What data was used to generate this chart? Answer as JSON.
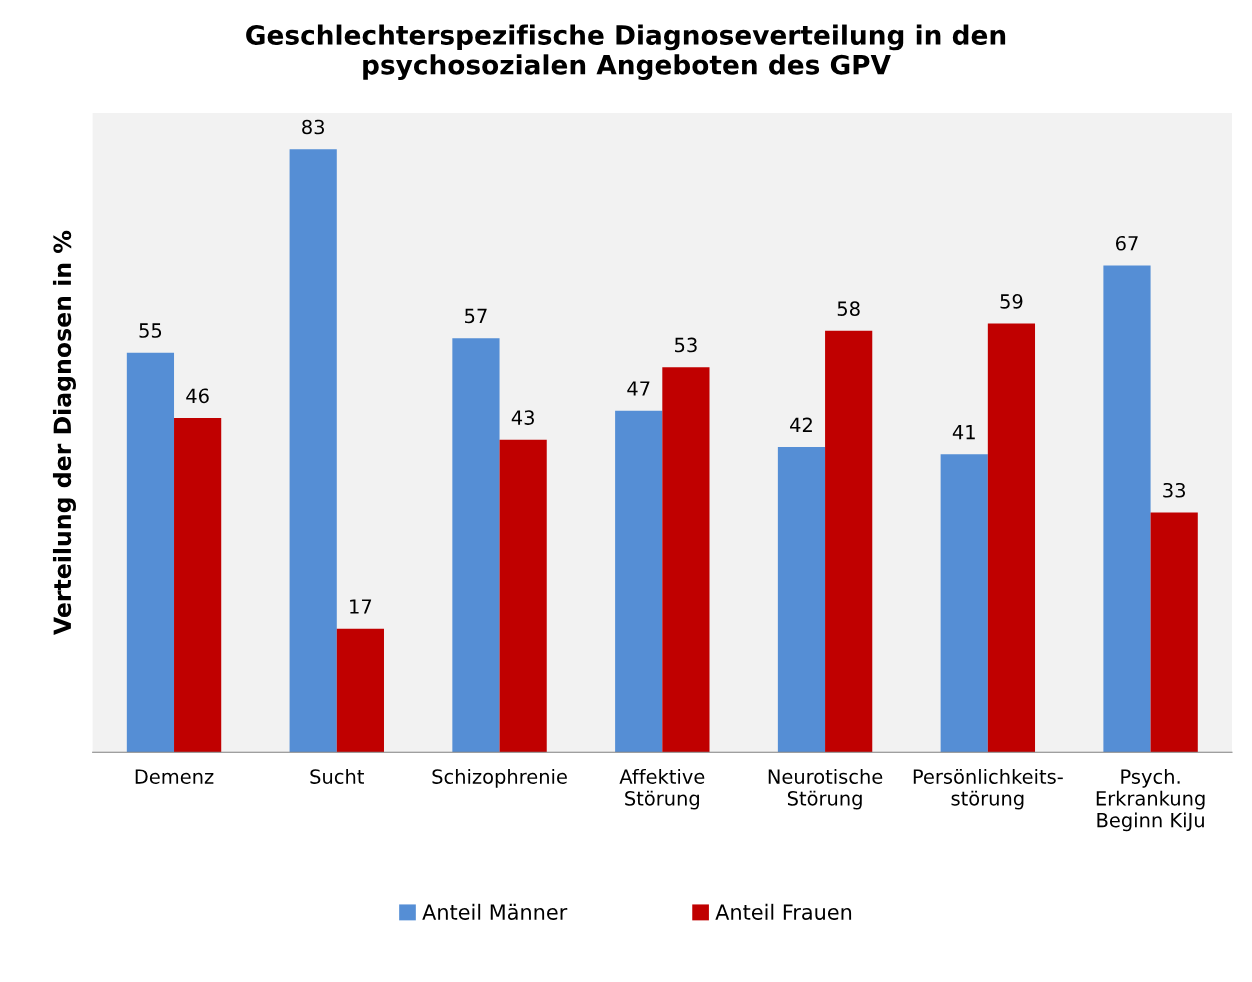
{
  "chart_data": {
    "type": "bar",
    "title": "Geschlechterspezifische Diagnoseverteilung in den\npsychosozialen Angeboten des GPV",
    "ylabel": "Verteilung der Diagnosen in %",
    "categories": [
      "Demenz",
      "Sucht",
      "Schizophrenie",
      "Affektive\nStörung",
      "Neurotische\nStörung",
      "Persönlichkeits-\nstörung",
      "Psych.\nErkrankung\nBeginn KiJu"
    ],
    "series": [
      {
        "name": "Anteil Männer",
        "color": "#558ed5",
        "values": [
          55,
          83,
          57,
          47,
          42,
          41,
          67
        ]
      },
      {
        "name": "Anteil Frauen",
        "color": "#c00000",
        "values": [
          46,
          17,
          43,
          53,
          58,
          59,
          33
        ]
      }
    ],
    "ylim": [
      0,
      88
    ],
    "tick_labels": "x",
    "data_labels": true,
    "grid": false,
    "legend": "bottom"
  }
}
